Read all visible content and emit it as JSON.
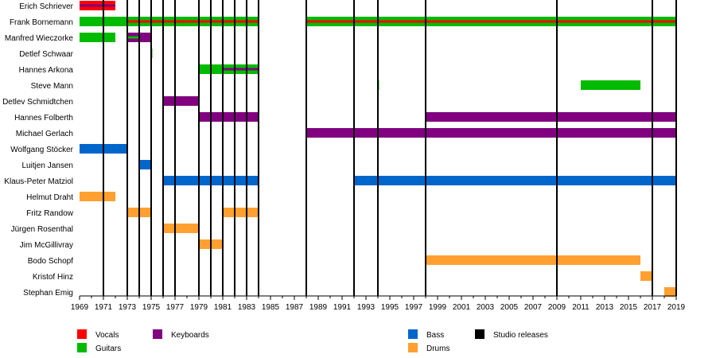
{
  "chart_data": {
    "type": "timeline",
    "title": "",
    "xlim": [
      1969,
      2019
    ],
    "x_ticks": [
      "1969",
      "1971",
      "1973",
      "1975",
      "1977",
      "1979",
      "1981",
      "1983",
      "1985",
      "1987",
      "1989",
      "1991",
      "1993",
      "1995",
      "1997",
      "1999",
      "2001",
      "2003",
      "2005",
      "2007",
      "2009",
      "2011",
      "2013",
      "2015",
      "2017",
      "2019"
    ],
    "members": [
      "Erich Schriever",
      "Frank Bornemann",
      "Manfred Wieczorke",
      "Detlef Schwaar",
      "Hannes Arkona",
      "Steve Mann",
      "Detlev Schmidtchen",
      "Hannes Folberth",
      "Michael Gerlach",
      "Wolfgang Stöcker",
      "Luitjen Jansen",
      "Klaus-Peter Matziol",
      "Helmut Draht",
      "Fritz Randow",
      "Jürgen Rosenthal",
      "Jim McGillivray",
      "Bodo Schopf",
      "Kristof Hinz",
      "Stephan Emig"
    ],
    "roles": [
      {
        "key": "vocals",
        "label": "Vocals",
        "color": "#ff0000"
      },
      {
        "key": "guitars",
        "label": "Guitars",
        "color": "#00bb00"
      },
      {
        "key": "keyboards",
        "label": "Keyboards",
        "color": "#800080"
      },
      {
        "key": "bass",
        "label": "Bass",
        "color": "#0066cc"
      },
      {
        "key": "drums",
        "label": "Drums",
        "color": "#ffa030"
      },
      {
        "key": "studio",
        "label": "Studio releases",
        "color": "#000000"
      }
    ],
    "bars": [
      {
        "member": 0,
        "role": "vocals",
        "start": 1969,
        "end": 1972
      },
      {
        "member": 0,
        "role": "keyboards",
        "start": 1969,
        "end": 1972,
        "inner": true
      },
      {
        "member": 1,
        "role": "guitars",
        "start": 1969,
        "end": 1984
      },
      {
        "member": 1,
        "role": "vocals",
        "start": 1973,
        "end": 1984,
        "inner": true
      },
      {
        "member": 1,
        "role": "guitars",
        "start": 1988,
        "end": 2019
      },
      {
        "member": 1,
        "role": "vocals",
        "start": 1988,
        "end": 2019,
        "inner": true
      },
      {
        "member": 2,
        "role": "guitars",
        "start": 1969,
        "end": 1972
      },
      {
        "member": 2,
        "role": "keyboards",
        "start": 1973,
        "end": 1975
      },
      {
        "member": 2,
        "role": "guitars",
        "start": 1973,
        "end": 1974,
        "inner": true
      },
      {
        "member": 3,
        "role": "guitars",
        "start": 1975,
        "end": 1975.1
      },
      {
        "member": 4,
        "role": "guitars",
        "start": 1979,
        "end": 1984
      },
      {
        "member": 4,
        "role": "keyboards",
        "start": 1981,
        "end": 1984,
        "inner": true
      },
      {
        "member": 5,
        "role": "guitars",
        "start": 1994,
        "end": 1994.1
      },
      {
        "member": 5,
        "role": "guitars",
        "start": 2011,
        "end": 2016
      },
      {
        "member": 6,
        "role": "keyboards",
        "start": 1976,
        "end": 1979
      },
      {
        "member": 7,
        "role": "keyboards",
        "start": 1979,
        "end": 1984
      },
      {
        "member": 7,
        "role": "keyboards",
        "start": 1998,
        "end": 2019
      },
      {
        "member": 8,
        "role": "keyboards",
        "start": 1988,
        "end": 2019
      },
      {
        "member": 9,
        "role": "bass",
        "start": 1969,
        "end": 1973
      },
      {
        "member": 10,
        "role": "bass",
        "start": 1974,
        "end": 1975
      },
      {
        "member": 11,
        "role": "bass",
        "start": 1976,
        "end": 1984
      },
      {
        "member": 11,
        "role": "bass",
        "start": 1992,
        "end": 2019
      },
      {
        "member": 12,
        "role": "drums",
        "start": 1969,
        "end": 1972
      },
      {
        "member": 13,
        "role": "drums",
        "start": 1973,
        "end": 1975
      },
      {
        "member": 13,
        "role": "drums",
        "start": 1981,
        "end": 1984
      },
      {
        "member": 14,
        "role": "drums",
        "start": 1976,
        "end": 1979
      },
      {
        "member": 15,
        "role": "drums",
        "start": 1979,
        "end": 1981
      },
      {
        "member": 16,
        "role": "drums",
        "start": 1998,
        "end": 2016
      },
      {
        "member": 17,
        "role": "drums",
        "start": 2016,
        "end": 2017
      },
      {
        "member": 18,
        "role": "drums",
        "start": 2018,
        "end": 2019
      }
    ],
    "studio_releases": [
      1971,
      1973,
      1974,
      1975,
      1976,
      1977,
      1979,
      1980,
      1981,
      1982,
      1983,
      1984,
      1988,
      1992,
      1994,
      1998,
      2009,
      2017,
      2019
    ]
  }
}
